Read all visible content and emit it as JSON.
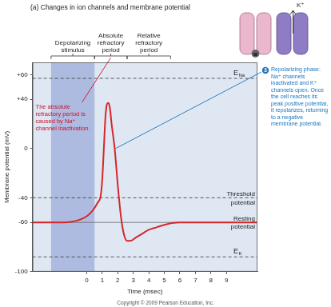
{
  "chart_data": {
    "type": "line",
    "title": "(a) Changes in ion channels and membrane potential",
    "x_label": "Time (msec)",
    "y_label": "Membrane potential (mV)",
    "xlim": [
      -3.5,
      11
    ],
    "xticks": [
      0,
      1,
      2,
      3,
      4,
      5,
      6,
      7,
      8,
      9
    ],
    "ylim": [
      -100,
      70
    ],
    "yticks": [
      -100,
      -60,
      -40,
      0,
      {
        "value": 40,
        "label": "+40"
      },
      {
        "value": 60,
        "label": "+60"
      }
    ],
    "grid": false,
    "color": "#d7262b",
    "x": [
      -3.5,
      -1.5,
      -1,
      -0.5,
      0,
      0.4,
      0.7,
      0.9,
      1,
      1.1,
      1.2,
      1.3,
      1.4,
      1.5,
      1.6,
      1.8,
      2,
      2.2,
      2.4,
      2.6,
      2.8,
      3.2,
      3.6,
      4,
      4.5,
      5,
      5.5,
      6,
      11
    ],
    "values": [
      -60,
      -60,
      -59.5,
      -58,
      -55,
      -50,
      -44,
      -38,
      -25,
      0,
      25,
      36,
      37,
      32,
      20,
      0,
      -30,
      -55,
      -70,
      -75,
      -75,
      -72,
      -69,
      -66,
      -64,
      -62,
      -60.5,
      -60,
      -60
    ],
    "reference_lines": [
      {
        "value": 57,
        "label": "E",
        "subscript": "Na",
        "line_style": "dashed"
      },
      {
        "value": -40,
        "label": "Threshold potential",
        "line_style": "dashed"
      },
      {
        "value": -60,
        "label": "Resting potential",
        "line_style": "solid"
      },
      {
        "value": -88,
        "label": "E",
        "subscript": "K",
        "line_style": "dashed"
      }
    ],
    "stimulus": {
      "label": "Depolarizing stimulus",
      "start": -2.3,
      "end": 0.5
    },
    "periods": [
      {
        "label": "Absolute refractory period",
        "start": 0.5,
        "end": 2.6
      },
      {
        "label": "Relative refractory period",
        "start": 2.6,
        "end": 5.4
      }
    ],
    "annotations": [
      {
        "text": "The absolute refractory period is caused by Na⁺ channel inactivation.",
        "color": "#c8102e"
      },
      {
        "step": 3,
        "text": "Repolarizing phase: Na⁺ channels inactivated and K⁺ channels open. Once the cell reaches its peak positive potential, it repolarizes, returning to a negative membrane potential.",
        "color": "#1a75bc",
        "target_x": 1.85,
        "target_y": 0
      }
    ],
    "icon_label": "K⁺",
    "copyright": "Copyright © 2009 Pearson Education, Inc."
  }
}
